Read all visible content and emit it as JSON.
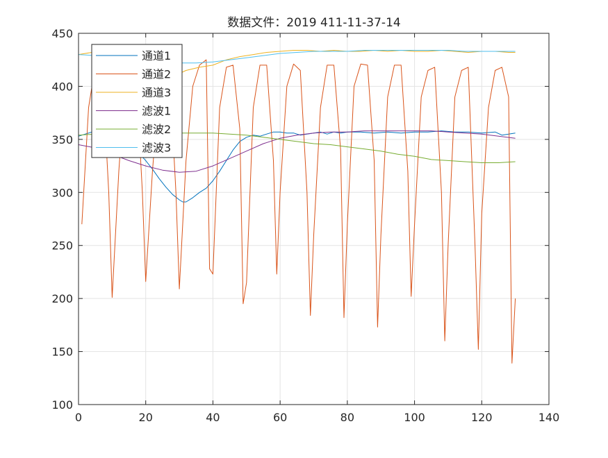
{
  "chart_data": {
    "type": "line",
    "title": "数据文件：2019 411-11-37-14",
    "xlabel": "",
    "ylabel": "",
    "xlim": [
      0,
      140
    ],
    "ylim": [
      100,
      450
    ],
    "xticks": [
      0,
      20,
      40,
      60,
      80,
      100,
      120,
      140
    ],
    "yticks": [
      100,
      150,
      200,
      250,
      300,
      350,
      400,
      450
    ],
    "grid": true,
    "legend_position": "top-left",
    "series": [
      {
        "name": "通道1",
        "color": "#0072BD",
        "x": [
          0,
          2,
          4,
          6,
          8,
          10,
          12,
          14,
          16,
          18,
          20,
          22,
          24,
          26,
          28,
          30,
          31,
          32,
          34,
          36,
          38,
          40,
          42,
          44,
          46,
          48,
          50,
          52,
          54,
          56,
          58,
          60,
          62,
          64,
          66,
          68,
          70,
          72,
          74,
          76,
          78,
          80,
          84,
          88,
          92,
          96,
          100,
          104,
          108,
          112,
          116,
          120,
          124,
          126,
          128,
          130
        ],
        "values": [
          353,
          355,
          357,
          355,
          356,
          353,
          352,
          350,
          345,
          337,
          330,
          322,
          313,
          305,
          298,
          293,
          291,
          291,
          295,
          300,
          304,
          311,
          320,
          330,
          340,
          348,
          352,
          354,
          353,
          355,
          357,
          357,
          356,
          356,
          354,
          355,
          356,
          357,
          355,
          357,
          356,
          357,
          357,
          356,
          357,
          356,
          357,
          357,
          358,
          357,
          357,
          356,
          357,
          354,
          355,
          356
        ]
      },
      {
        "name": "通道2",
        "color": "#D95319",
        "x": [
          1,
          3,
          5,
          7,
          9,
          10,
          12,
          14,
          17,
          19,
          20,
          22,
          24,
          27,
          29,
          30,
          32,
          34,
          36,
          38,
          39,
          40,
          42,
          44,
          46,
          48,
          49,
          50,
          52,
          54,
          56,
          58,
          59,
          60,
          62,
          64,
          66,
          68,
          69,
          70,
          72,
          74,
          76,
          78,
          79,
          80,
          82,
          84,
          86,
          88,
          89,
          90,
          92,
          94,
          96,
          98,
          99,
          100,
          102,
          104,
          106,
          108,
          109,
          110,
          112,
          114,
          116,
          118,
          119,
          120,
          122,
          124,
          126,
          128,
          129,
          130
        ],
        "values": [
          270,
          380,
          420,
          420,
          300,
          201,
          320,
          410,
          420,
          300,
          216,
          320,
          400,
          418,
          300,
          209,
          330,
          400,
          420,
          425,
          228,
          223,
          380,
          418,
          420,
          360,
          195,
          215,
          380,
          420,
          420,
          330,
          223,
          300,
          400,
          421,
          415,
          300,
          184,
          260,
          380,
          420,
          420,
          340,
          182,
          270,
          400,
          421,
          420,
          330,
          173,
          260,
          390,
          420,
          420,
          320,
          202,
          270,
          390,
          415,
          418,
          300,
          160,
          250,
          390,
          415,
          418,
          250,
          152,
          280,
          380,
          415,
          418,
          390,
          139,
          200
        ]
      },
      {
        "name": "通道3",
        "color": "#EDB120",
        "x": [
          0,
          4,
          8,
          12,
          16,
          20,
          24,
          28,
          30,
          32,
          36,
          40,
          44,
          48,
          52,
          56,
          60,
          64,
          68,
          72,
          76,
          80,
          84,
          88,
          92,
          96,
          100,
          104,
          108,
          112,
          116,
          120,
          124,
          128,
          130
        ],
        "values": [
          430,
          432,
          431,
          431,
          430,
          430,
          430,
          420,
          412,
          415,
          418,
          420,
          425,
          428,
          430,
          432,
          433,
          434,
          434,
          433,
          434,
          433,
          433,
          434,
          433,
          434,
          433,
          433,
          434,
          433,
          432,
          433,
          433,
          432,
          432
        ]
      },
      {
        "name": "滤波1",
        "color": "#7E2F8E",
        "x": [
          0,
          5,
          10,
          15,
          20,
          25,
          30,
          35,
          40,
          45,
          50,
          55,
          60,
          65,
          70,
          75,
          80,
          85,
          90,
          95,
          100,
          105,
          110,
          115,
          120,
          125,
          130
        ],
        "values": [
          345,
          342,
          336,
          330,
          325,
          321,
          319,
          320,
          325,
          332,
          339,
          346,
          351,
          354,
          356,
          357,
          357,
          358,
          358,
          358,
          358,
          358,
          357,
          356,
          355,
          353,
          351
        ]
      },
      {
        "name": "滤波2",
        "color": "#77AC30",
        "x": [
          0,
          5,
          10,
          15,
          20,
          25,
          30,
          35,
          40,
          45,
          50,
          55,
          60,
          65,
          70,
          75,
          80,
          85,
          90,
          95,
          100,
          105,
          110,
          115,
          120,
          125,
          130
        ],
        "values": [
          354,
          355,
          356,
          356,
          356,
          356,
          356,
          356,
          356,
          355,
          354,
          352,
          350,
          348,
          346,
          345,
          343,
          341,
          339,
          336,
          334,
          331,
          330,
          329,
          328,
          328,
          329
        ]
      },
      {
        "name": "滤波3",
        "color": "#4DBEEE",
        "x": [
          0,
          5,
          10,
          15,
          20,
          25,
          30,
          35,
          40,
          45,
          50,
          55,
          60,
          65,
          70,
          75,
          80,
          85,
          90,
          95,
          100,
          105,
          110,
          115,
          120,
          125,
          130
        ],
        "values": [
          430,
          429,
          427,
          425,
          424,
          423,
          422,
          422,
          423,
          425,
          427,
          429,
          431,
          432,
          433,
          433,
          433,
          434,
          434,
          434,
          434,
          434,
          434,
          433,
          433,
          433,
          433
        ]
      }
    ]
  }
}
